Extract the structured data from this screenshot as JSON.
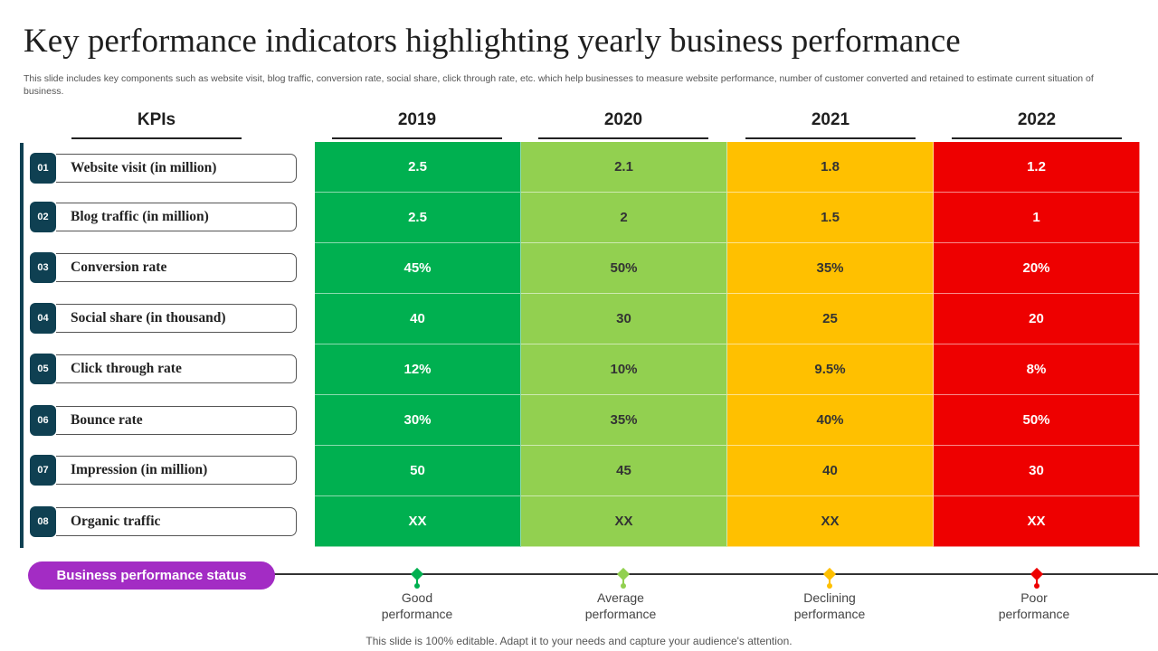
{
  "title": "Key performance indicators highlighting yearly business performance",
  "subtitle": "This slide includes key components such as website visit, blog traffic, conversion rate, social share, click through rate, etc. which help businesses to measure website performance, number of customer converted and retained to estimate current situation of business.",
  "table": {
    "kpi_header": "KPIs",
    "years": [
      "2019",
      "2020",
      "2021",
      "2022"
    ],
    "rows": [
      {
        "num": "01",
        "label": "Website visit (in million)",
        "values": [
          "2.5",
          "2.1",
          "1.8",
          "1.2"
        ]
      },
      {
        "num": "02",
        "label": "Blog traffic (in million)",
        "values": [
          "2.5",
          "2",
          "1.5",
          "1"
        ]
      },
      {
        "num": "03",
        "label": "Conversion rate",
        "values": [
          "45%",
          "50%",
          "35%",
          "20%"
        ]
      },
      {
        "num": "04",
        "label": "Social share (in thousand)",
        "values": [
          "40",
          "30",
          "25",
          "20"
        ]
      },
      {
        "num": "05",
        "label": "Click through rate",
        "values": [
          "12%",
          "10%",
          "9.5%",
          "8%"
        ]
      },
      {
        "num": "06",
        "label": "Bounce rate",
        "values": [
          "30%",
          "35%",
          "40%",
          "50%"
        ]
      },
      {
        "num": "07",
        "label": "Impression (in million)",
        "values": [
          "50",
          "45",
          "40",
          "30"
        ]
      },
      {
        "num": "08",
        "label": "Organic traffic",
        "values": [
          "XX",
          "XX",
          "XX",
          "XX"
        ]
      }
    ]
  },
  "status": {
    "label": "Business performance status",
    "levels": [
      {
        "line1": "Good",
        "line2": "performance",
        "color": "#00b050"
      },
      {
        "line1": "Average",
        "line2": "performance",
        "color": "#92d050"
      },
      {
        "line1": "Declining",
        "line2": "performance",
        "color": "#ffc000"
      },
      {
        "line1": "Poor",
        "line2": "performance",
        "color": "#ee0000"
      }
    ]
  },
  "column_colors": [
    "#00b050",
    "#92d050",
    "#ffc000",
    "#ee0000"
  ],
  "text_colors": [
    "#ffffff",
    "#333333",
    "#333333",
    "#ffffff"
  ],
  "footer": "This slide is 100% editable. Adapt it to your needs and capture your audience's attention."
}
